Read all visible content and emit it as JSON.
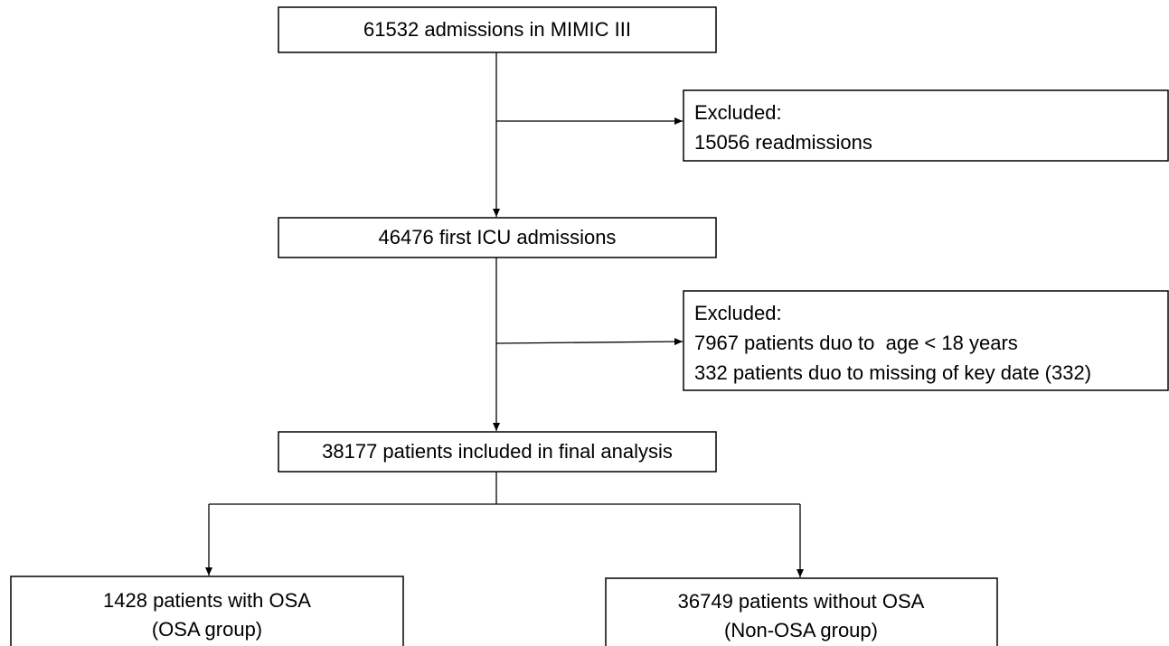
{
  "nodes": [
    {
      "lines": [
        "61532 admissions in MIMIC III"
      ]
    },
    {
      "lines": [
        "Excluded:",
        "15056 readmissions"
      ]
    },
    {
      "lines": [
        "46476 first ICU admissions"
      ]
    },
    {
      "lines": [
        "Excluded:",
        "7967 patients duo to  age < 18 years",
        "332 patients duo to missing of key date (332)"
      ]
    },
    {
      "lines": [
        "38177 patients included in final analysis"
      ]
    },
    {
      "lines": [
        "1428 patients with OSA",
        "(OSA group)"
      ]
    },
    {
      "lines": [
        "36749 patients without OSA",
        "(Non-OSA group)"
      ]
    }
  ]
}
